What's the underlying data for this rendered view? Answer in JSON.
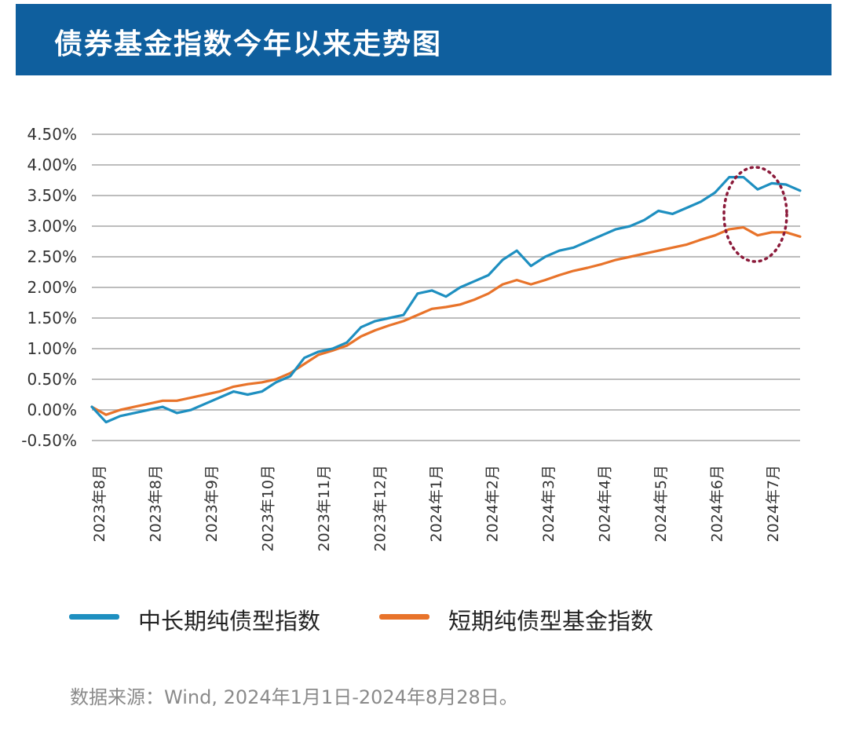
{
  "header": {
    "title": "债券基金指数今年以来走势图"
  },
  "source_note": "数据来源：Wind, 2024年1月1日-2024年8月28日。",
  "colors": {
    "banner": "#0f5f9e",
    "series_long": "#1e8fc0",
    "series_short": "#e8732a",
    "annotation": "#8b1a3a",
    "grid": "#bdbdbd"
  },
  "chart_data": {
    "type": "line",
    "title": "债券基金指数今年以来走势图",
    "xlabel": "",
    "ylabel": "",
    "ylim": [
      -0.5,
      4.5
    ],
    "yticks": [
      "4.50%",
      "4.00%",
      "3.50%",
      "3.00%",
      "2.50%",
      "2.00%",
      "1.50%",
      "1.00%",
      "0.50%",
      "0.00%",
      "-0.50%"
    ],
    "ytick_values": [
      4.5,
      4.0,
      3.5,
      3.0,
      2.5,
      2.0,
      1.5,
      1.0,
      0.5,
      0.0,
      -0.5
    ],
    "x_tick_labels": [
      "2023年8月",
      "2023年8月",
      "2023年9月",
      "2023年10月",
      "2023年11月",
      "2023年12月",
      "2024年1月",
      "2024年2月",
      "2024年3月",
      "2024年4月",
      "2024年5月",
      "2024年6月",
      "2024年7月"
    ],
    "x": [
      0,
      0.25,
      0.5,
      0.75,
      1,
      1.25,
      1.5,
      1.75,
      2,
      2.25,
      2.5,
      2.75,
      3,
      3.25,
      3.5,
      3.75,
      4,
      4.25,
      4.5,
      4.75,
      5,
      5.25,
      5.5,
      5.75,
      6,
      6.25,
      6.5,
      6.75,
      7,
      7.25,
      7.5,
      7.75,
      8,
      8.25,
      8.5,
      8.75,
      9,
      9.25,
      9.5,
      9.75,
      10,
      10.25,
      10.5,
      10.75,
      11,
      11.25,
      11.5,
      11.75,
      12,
      12.25,
      12.5
    ],
    "series": [
      {
        "name": "中长期纯债型指数",
        "color": "#1e8fc0",
        "values": [
          0.05,
          -0.2,
          -0.1,
          -0.05,
          0.0,
          0.05,
          -0.05,
          0.0,
          0.1,
          0.2,
          0.3,
          0.25,
          0.3,
          0.45,
          0.55,
          0.85,
          0.95,
          1.0,
          1.1,
          1.35,
          1.45,
          1.5,
          1.55,
          1.9,
          1.95,
          1.85,
          2.0,
          2.1,
          2.2,
          2.45,
          2.6,
          2.35,
          2.5,
          2.6,
          2.65,
          2.75,
          2.85,
          2.95,
          3.0,
          3.1,
          3.25,
          3.2,
          3.3,
          3.4,
          3.55,
          3.8,
          3.8,
          3.6,
          3.7,
          3.68,
          3.58
        ]
      },
      {
        "name": "短期纯债型基金指数",
        "color": "#e8732a",
        "values": [
          0.05,
          -0.08,
          0.0,
          0.05,
          0.1,
          0.15,
          0.15,
          0.2,
          0.25,
          0.3,
          0.38,
          0.42,
          0.45,
          0.5,
          0.6,
          0.75,
          0.9,
          0.97,
          1.05,
          1.2,
          1.3,
          1.38,
          1.45,
          1.55,
          1.65,
          1.68,
          1.72,
          1.8,
          1.9,
          2.05,
          2.12,
          2.05,
          2.12,
          2.2,
          2.27,
          2.32,
          2.38,
          2.45,
          2.5,
          2.55,
          2.6,
          2.65,
          2.7,
          2.78,
          2.85,
          2.95,
          2.98,
          2.85,
          2.9,
          2.9,
          2.83
        ]
      }
    ],
    "legend": "bottom",
    "grid": true,
    "annotation": "dotted ellipse around the latest peak of both series"
  }
}
